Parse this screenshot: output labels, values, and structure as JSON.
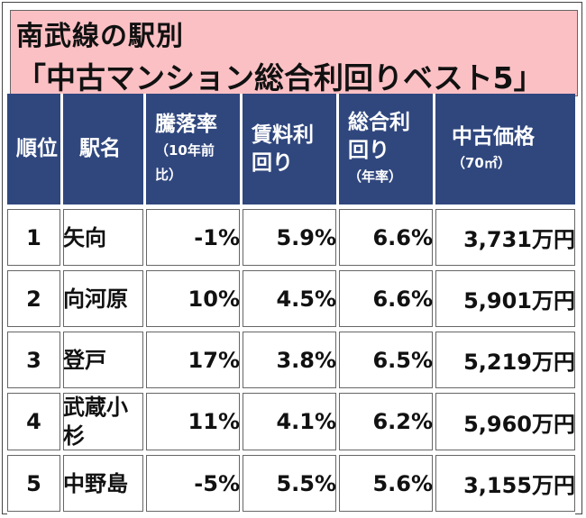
{
  "title": {
    "line1": "南武線の駅別",
    "line2": "「中古マンション総合利回りベスト5」"
  },
  "headers": {
    "rank": "順位",
    "station": "駅名",
    "decline_main": "騰落率",
    "decline_sub1": "（10年前",
    "decline_sub2": "比）",
    "rent_yield_main1": "賃料利",
    "rent_yield_main2": "回り",
    "total_yield_main1": "総合利",
    "total_yield_main2": "回り",
    "total_yield_sub": "（年率）",
    "price_main": "中古価格",
    "price_sub": "（70㎡）"
  },
  "colors": {
    "header_bg": "#30477e",
    "title_bg": "#fbc0c4",
    "highlight": "#f4777b"
  },
  "rows": [
    {
      "rank": "1",
      "station": "矢向",
      "decline": "-1%",
      "rent_yield": "5.9%",
      "total_yield": "6.6%",
      "price": "3,731万円"
    },
    {
      "rank": "2",
      "station": "向河原",
      "decline": "10%",
      "rent_yield": "4.5%",
      "total_yield": "6.6%",
      "price": "5,901万円"
    },
    {
      "rank": "3",
      "station": "登戸",
      "decline": "17%",
      "rent_yield": "3.8%",
      "total_yield": "6.5%",
      "price": "5,219万円"
    },
    {
      "rank": "4",
      "station": "武蔵小杉",
      "decline": "11%",
      "rent_yield": "4.1%",
      "total_yield": "6.2%",
      "price": "5,960万円"
    },
    {
      "rank": "5",
      "station": "中野島",
      "decline": "-5%",
      "rent_yield": "5.5%",
      "total_yield": "5.6%",
      "price": "3,155万円"
    }
  ]
}
